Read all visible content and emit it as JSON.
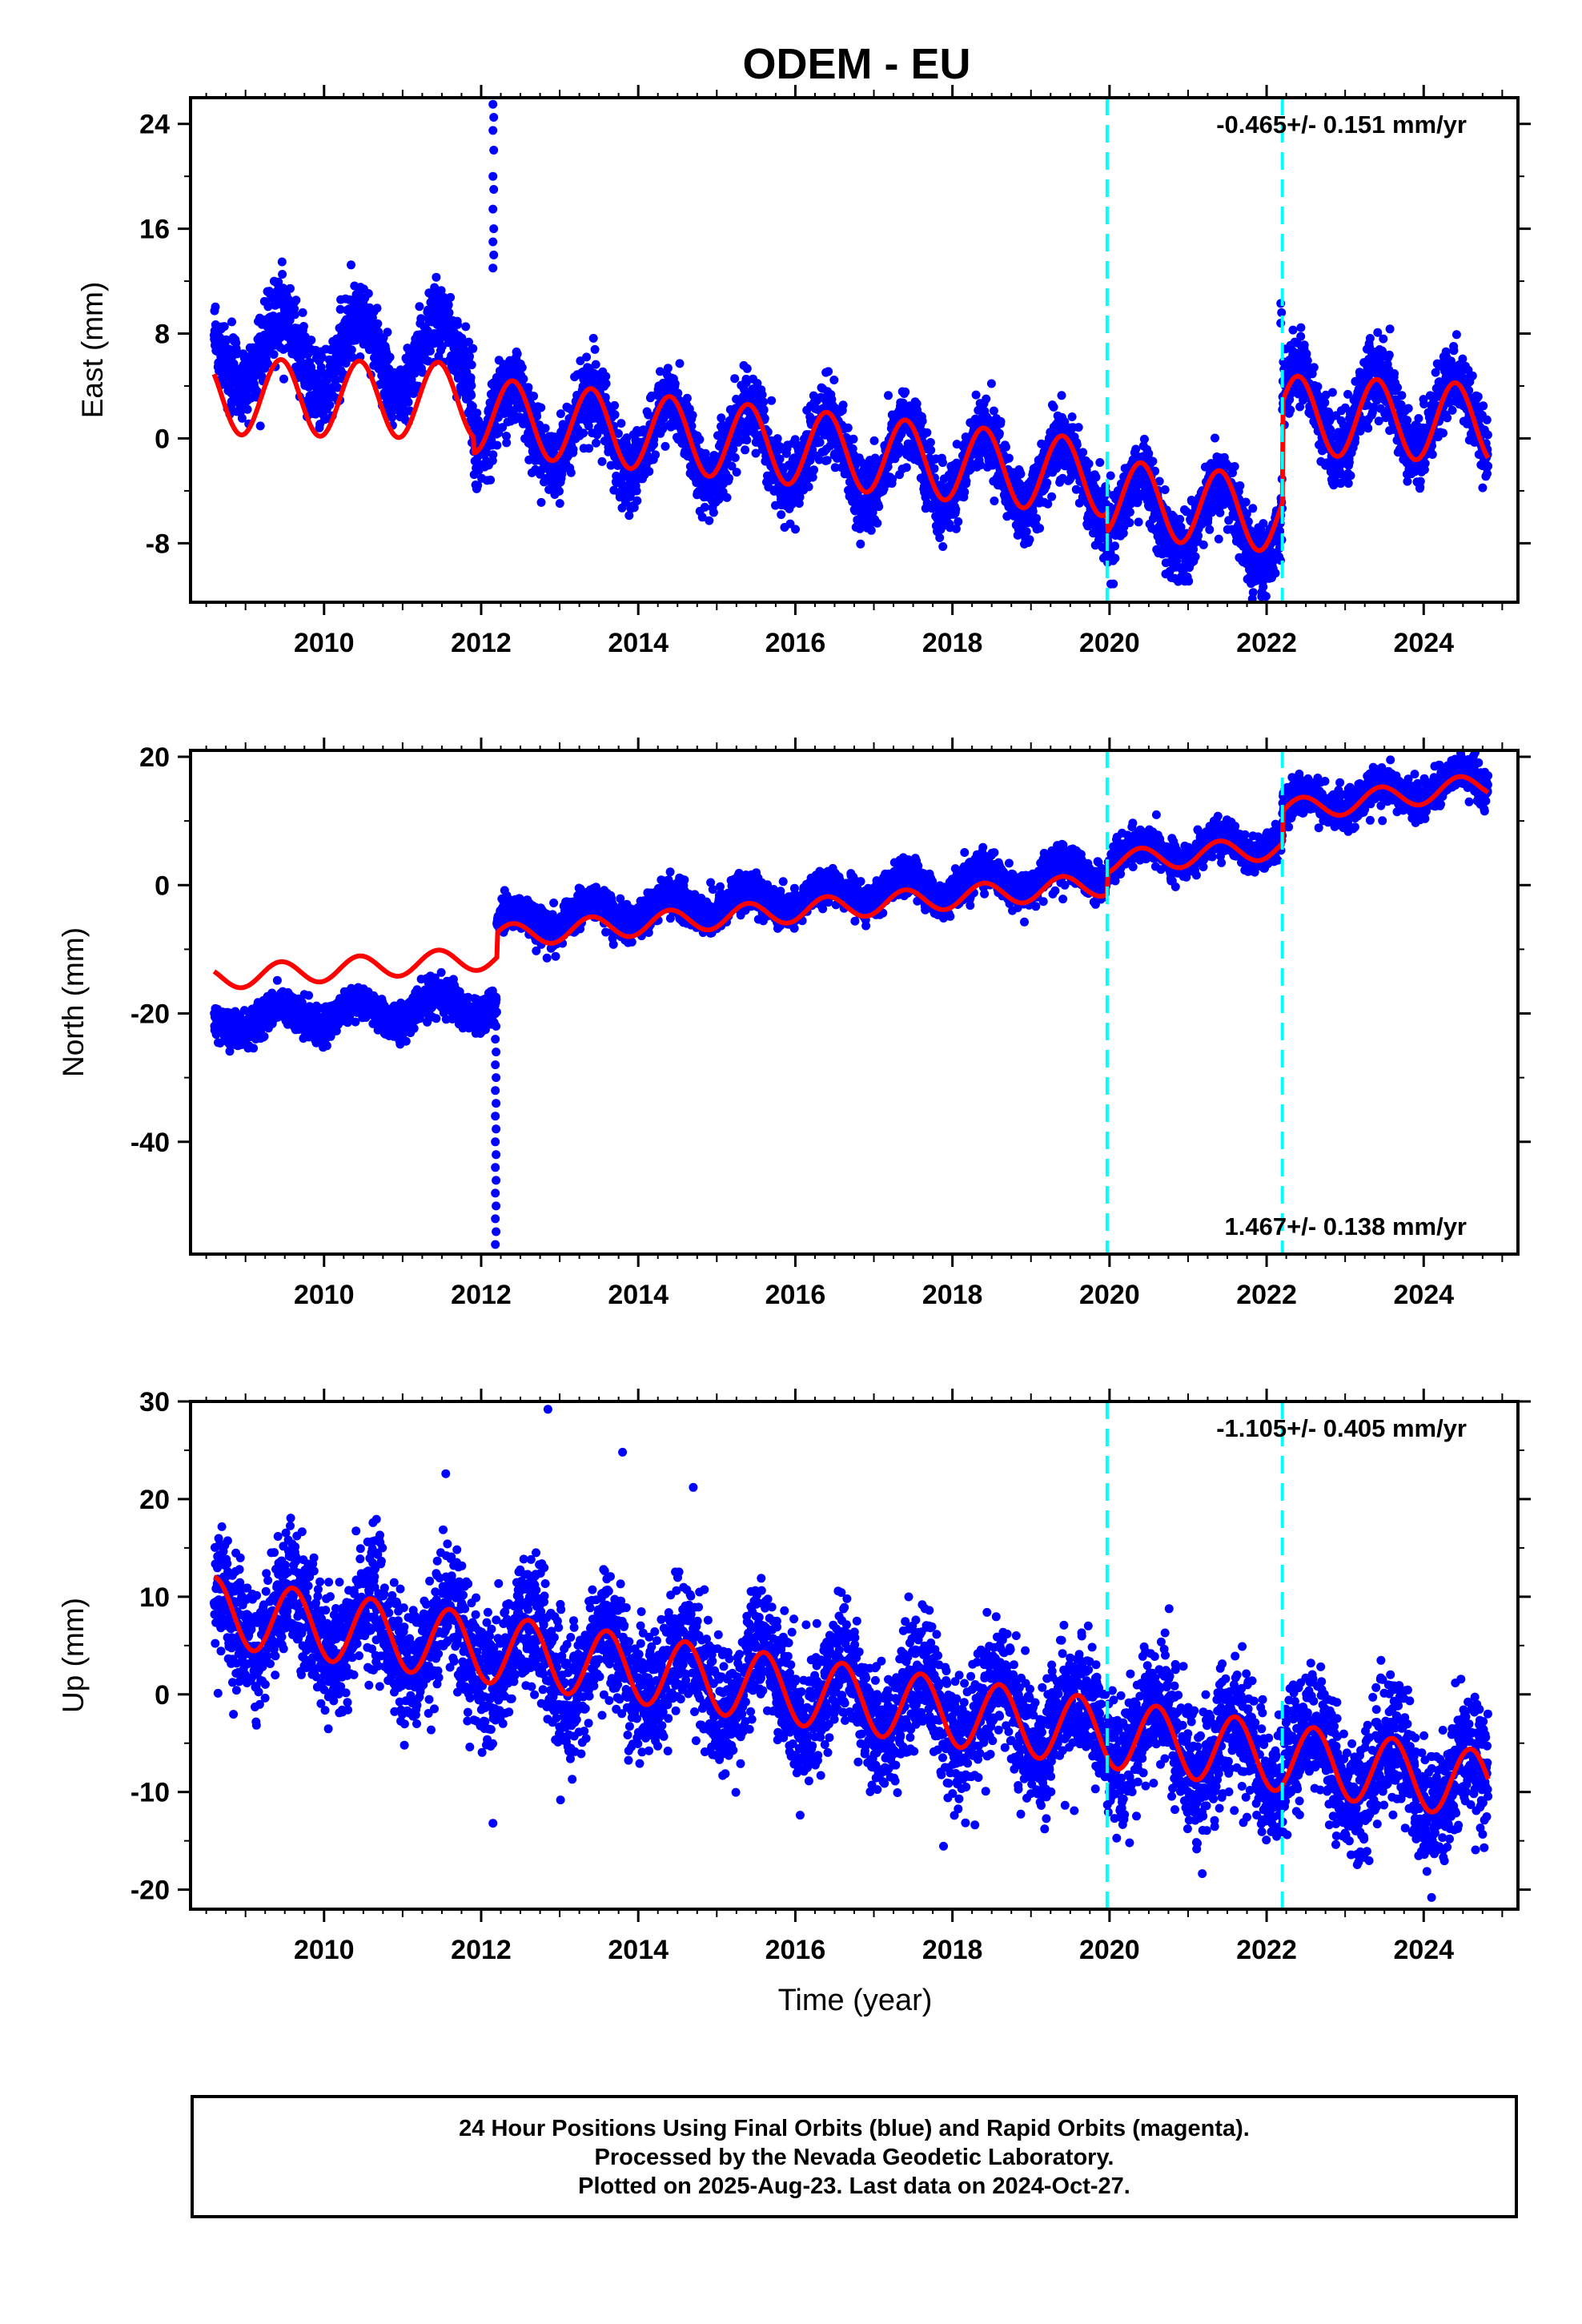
{
  "title": "ODEM - EU",
  "xlabel": "Time (year)",
  "colors": {
    "data": "#0000ff",
    "model": "#ff0000",
    "breaks": "#00ffff"
  },
  "footer": {
    "line1": "24 Hour Positions Using Final Orbits (blue) and Rapid Orbits (magenta).",
    "line2": "Processed by the Nevada Geodetic Laboratory.",
    "line3": "Plotted on 2025-Aug-23. Last data on 2024-Oct-27."
  },
  "chart_data": [
    {
      "type": "scatter",
      "component": "east",
      "ylabel": "East (mm)",
      "rate_label": "-0.465+/- 0.151 mm/yr",
      "xlim": [
        2008.3,
        2025.2
      ],
      "ylim": [
        -12.5,
        26
      ],
      "xticks": [
        2010,
        2012,
        2014,
        2016,
        2018,
        2020,
        2022,
        2024
      ],
      "yticks": [
        -8,
        0,
        8,
        16,
        24
      ],
      "breaks": [
        2019.97,
        2022.2
      ],
      "x_start": 2008.6,
      "x_end": 2024.82,
      "model": {
        "segments": [
          {
            "x0": 2008.6,
            "x1": 2011.9,
            "offset": 3.2,
            "rate": -0.1,
            "amp": 2.9,
            "peak": 2009.45
          },
          {
            "x0": 2011.9,
            "x1": 2019.97,
            "offset": 1.8,
            "rate": -0.6,
            "amp": 2.9,
            "peak": 2012.4
          },
          {
            "x0": 2019.97,
            "x1": 2022.2,
            "offset": -4.5,
            "rate": -0.6,
            "amp": 2.9,
            "peak": 2020.4
          },
          {
            "x0": 2022.2,
            "x1": 2024.82,
            "offset": 1.8,
            "rate": -0.25,
            "amp": 3.0,
            "peak": 2022.4
          }
        ]
      },
      "series_shift": [
        {
          "x0": 2008.6,
          "x1": 2011.9,
          "shift": 3.5
        },
        {
          "x0": 2011.9,
          "x1": 2019.97,
          "shift": -0.3
        },
        {
          "x0": 2019.97,
          "x1": 2022.2,
          "shift": -0.8
        },
        {
          "x0": 2022.2,
          "x1": 2024.82,
          "shift": 0.4
        }
      ],
      "noise": 1.4,
      "spikes": [
        {
          "x": 2012.15,
          "values": [
            25.5,
            24.5,
            23.5,
            22,
            20,
            19,
            17.5,
            16,
            15,
            14,
            13
          ]
        },
        {
          "x": 2022.18,
          "values": [
            10.3,
            9.6,
            8.8
          ]
        }
      ]
    },
    {
      "type": "scatter",
      "component": "north",
      "ylabel": "North (mm)",
      "rate_label": "1.467+/- 0.138 mm/yr",
      "xlim": [
        2008.3,
        2025.2
      ],
      "ylim": [
        -57.5,
        21
      ],
      "xticks": [
        2010,
        2012,
        2014,
        2016,
        2018,
        2020,
        2022,
        2024
      ],
      "yticks": [
        -40,
        -20,
        0,
        20
      ],
      "breaks": [
        2019.97,
        2022.2
      ],
      "x_start": 2008.6,
      "x_end": 2024.82,
      "model": {
        "segments": [
          {
            "x0": 2008.6,
            "x1": 2012.2,
            "offset": -14.5,
            "rate": 0.9,
            "amp": 1.8,
            "peak": 2009.45
          },
          {
            "x0": 2012.2,
            "x1": 2019.97,
            "offset": -8.0,
            "rate": 1.05,
            "amp": 1.8,
            "peak": 2012.4
          },
          {
            "x0": 2019.97,
            "x1": 2022.2,
            "offset": 3.5,
            "rate": 1.1,
            "amp": 1.8,
            "peak": 2020.4
          },
          {
            "x0": 2022.2,
            "x1": 2024.82,
            "offset": 11.5,
            "rate": 1.6,
            "amp": 1.8,
            "peak": 2022.45
          }
        ]
      },
      "series_shift": [
        {
          "x0": 2008.6,
          "x1": 2012.2,
          "shift": -7.0
        },
        {
          "x0": 2012.2,
          "x1": 2019.97,
          "shift": 2.0
        },
        {
          "x0": 2019.97,
          "x1": 2022.2,
          "shift": 0.8
        },
        {
          "x0": 2022.2,
          "x1": 2024.82,
          "shift": 0.5
        }
      ],
      "noise": 1.4,
      "spikes": [
        {
          "x": 2012.18,
          "values": [
            -56,
            -54,
            -52,
            -50,
            -48,
            -46,
            -44,
            -42,
            -40,
            -38,
            -36,
            -34,
            -32,
            -30,
            -28,
            -26,
            -24,
            -22
          ]
        }
      ]
    },
    {
      "type": "scatter",
      "component": "up",
      "ylabel": "Up (mm)",
      "rate_label": "-1.105+/- 0.405 mm/yr",
      "xlim": [
        2008.3,
        2025.2
      ],
      "ylim": [
        -22,
        30
      ],
      "xticks": [
        2010,
        2012,
        2014,
        2016,
        2018,
        2020,
        2022,
        2024
      ],
      "yticks": [
        -20,
        -10,
        0,
        10,
        20,
        30
      ],
      "breaks": [
        2019.97,
        2022.2
      ],
      "x_start": 2008.6,
      "x_end": 2024.82,
      "model": {
        "segments": [
          {
            "x0": 2008.6,
            "x1": 2024.82,
            "offset": 8.5,
            "rate": -1.1,
            "amp": 3.5,
            "peak": 2009.6
          }
        ]
      },
      "series_shift": [
        {
          "x0": 2008.6,
          "x1": 2024.82,
          "shift": 0
        }
      ],
      "noise": 3.2,
      "spikes": [
        {
          "x": 2012.85,
          "values": [
            29.2
          ]
        },
        {
          "x": 2013.8,
          "values": [
            24.8
          ]
        },
        {
          "x": 2011.55,
          "values": [
            22.6
          ]
        },
        {
          "x": 2014.7,
          "values": [
            21.2
          ]
        },
        {
          "x": 2012.15,
          "values": [
            -13.2
          ]
        },
        {
          "x": 2024.1,
          "values": [
            -20.8
          ]
        }
      ]
    }
  ]
}
